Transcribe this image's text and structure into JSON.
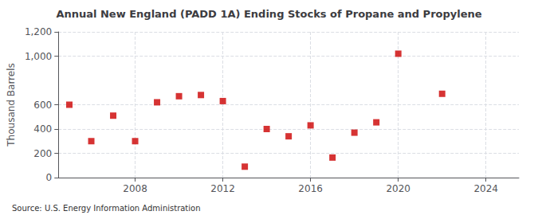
{
  "chart_data": {
    "type": "scatter",
    "title": "Annual New England (PADD 1A) Ending Stocks of Propane and Propylene",
    "ylabel": "Thousand Barrels",
    "source": "Source: U.S. Energy Information Administration",
    "x": [
      2005,
      2006,
      2007,
      2008,
      2009,
      2010,
      2011,
      2012,
      2013,
      2014,
      2015,
      2016,
      2017,
      2018,
      2019,
      2020,
      2022
    ],
    "values": [
      600,
      300,
      510,
      300,
      620,
      670,
      680,
      630,
      90,
      400,
      340,
      430,
      165,
      370,
      455,
      1020,
      690
    ],
    "color": "#cc0000",
    "marker": "square",
    "xlim": [
      2004.5,
      2025.5
    ],
    "xticks": [
      2008,
      2012,
      2016,
      2020,
      2024
    ],
    "ylim": [
      0,
      1200
    ],
    "yticks": [
      0,
      200,
      400,
      600,
      {
        "value": 1000,
        "label": "1,000"
      },
      {
        "value": 1200,
        "label": "1,200"
      }
    ],
    "grid": true
  }
}
